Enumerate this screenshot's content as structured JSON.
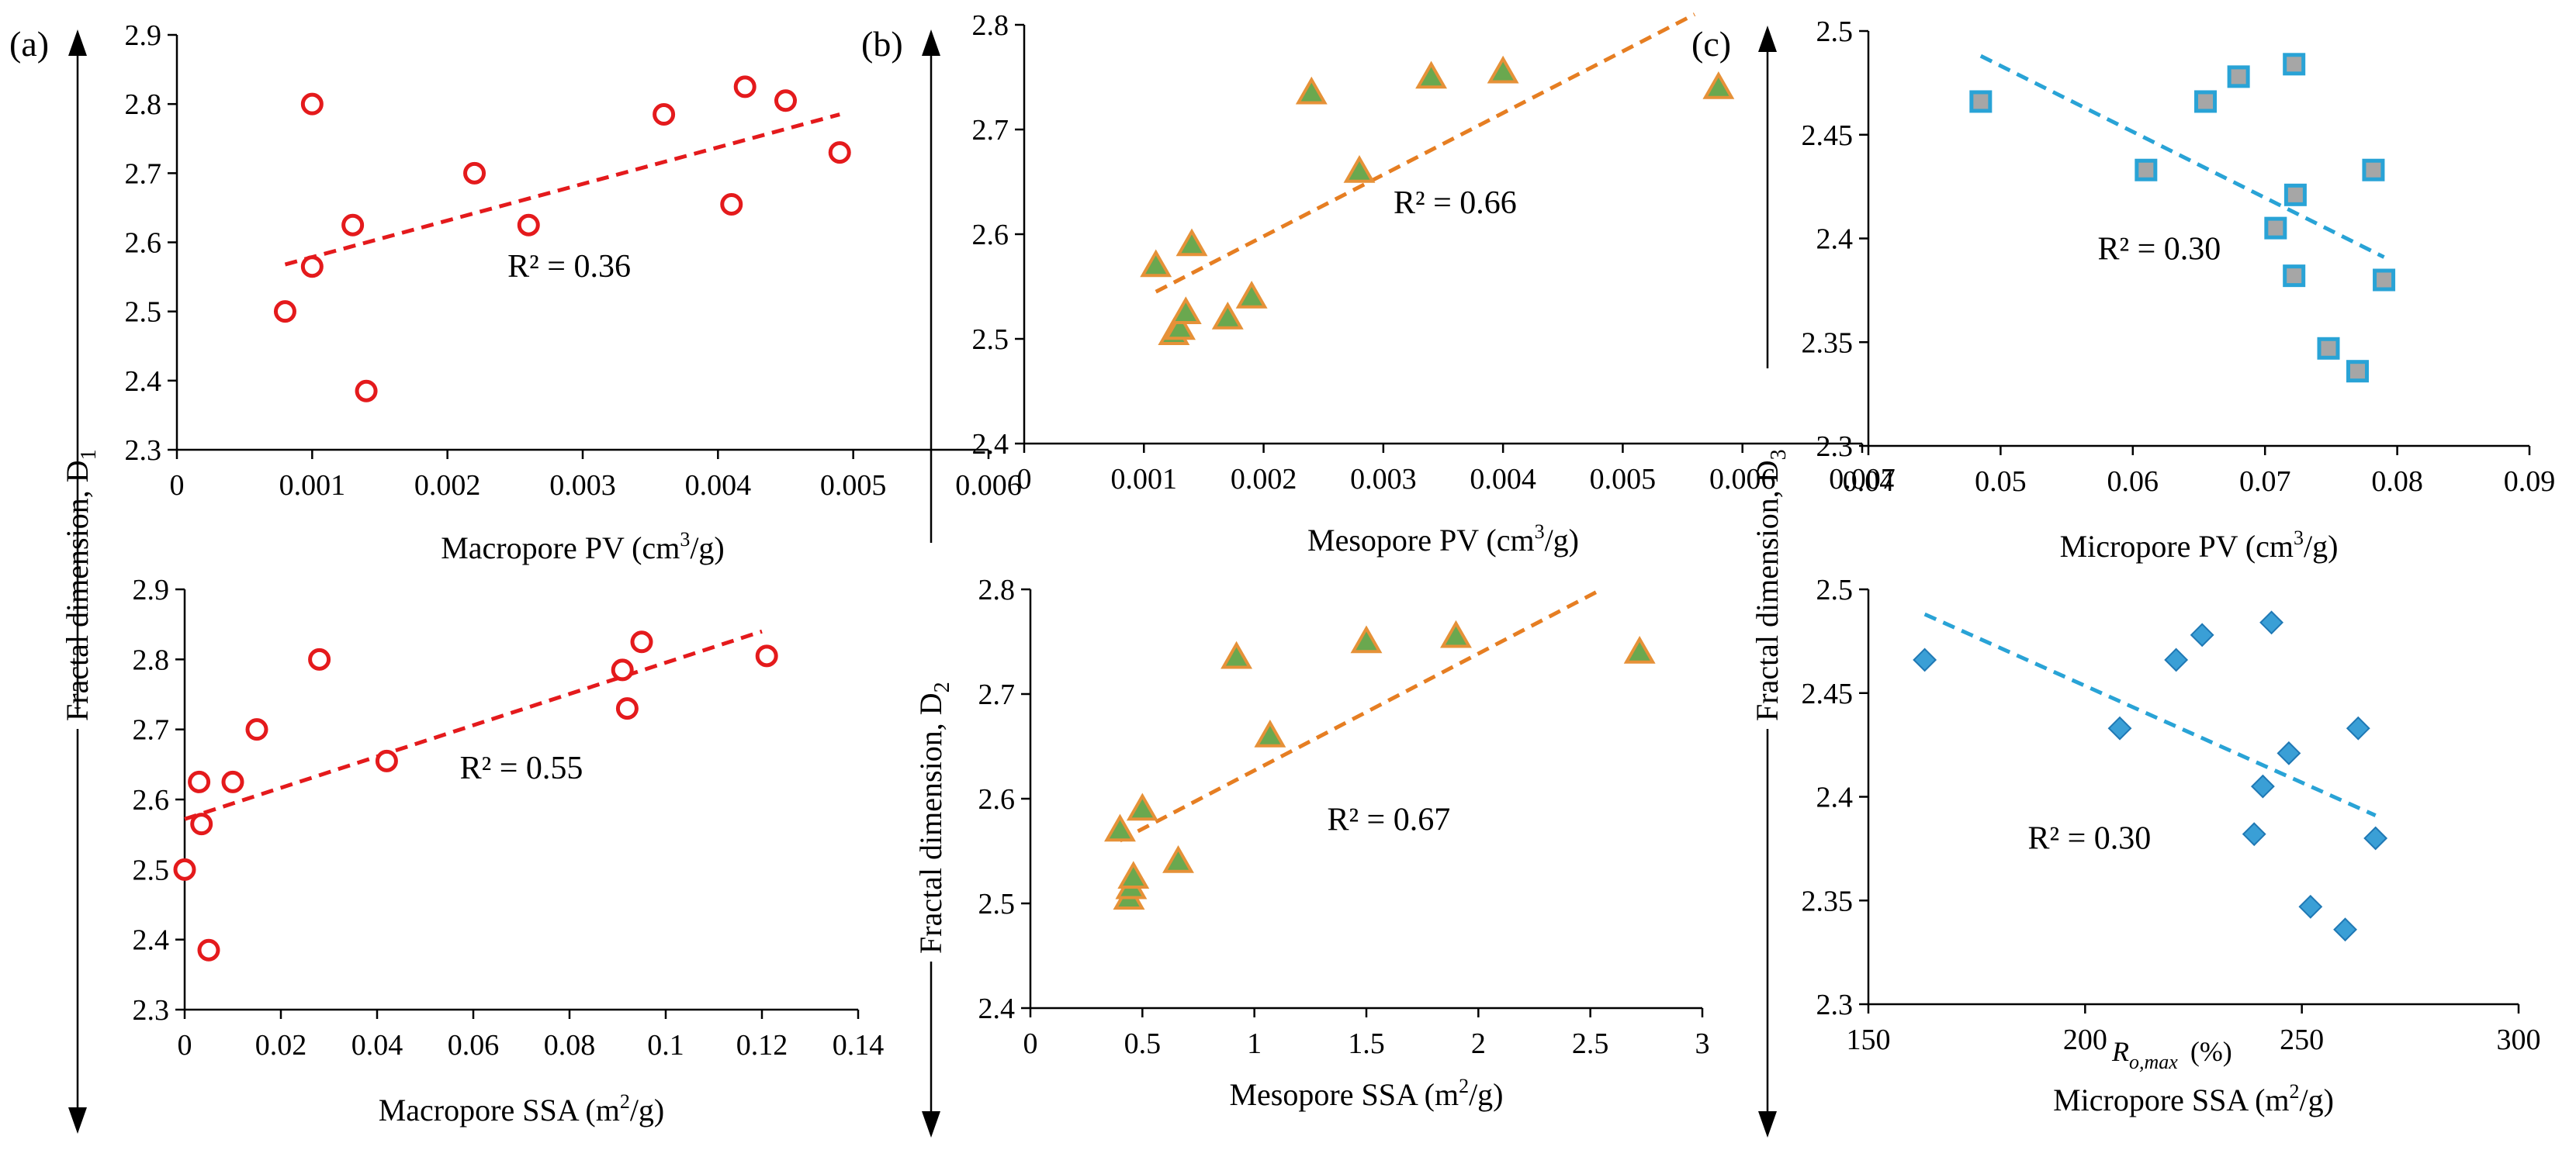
{
  "panel_labels": [
    "(a)",
    "(b)",
    "(c)"
  ],
  "axis_titles": {
    "left": "Fractal dimension, D",
    "left_sub": "1",
    "middle": "Fractal dimension, D",
    "middle_sub": "2",
    "right": "Fractal dimension, D",
    "right_sub": "3"
  },
  "stray_label": {
    "main": "R",
    "sub": "o,max",
    "tail": "(%)"
  },
  "chart_data": [
    {
      "id": "a-top",
      "type": "scatter",
      "xlabel": "Macropore PV (cm",
      "xlabel_sup": "3",
      "xlabel_tail": "/g)",
      "xlim": [
        0,
        0.006
      ],
      "ylim": [
        2.3,
        2.9
      ],
      "xticks": [
        "0",
        "0.001",
        "0.002",
        "0.003",
        "0.004",
        "0.005",
        "0.006"
      ],
      "yticks": [
        "2.3",
        "2.4",
        "2.5",
        "2.6",
        "2.7",
        "2.8",
        "2.9"
      ],
      "marker": "circle",
      "color": "#e41a1c",
      "x": [
        0.0008,
        0.001,
        0.001,
        0.0013,
        0.0014,
        0.0022,
        0.0026,
        0.0036,
        0.0041,
        0.0042,
        0.0045,
        0.0049
      ],
      "y": [
        2.5,
        2.565,
        2.8,
        2.625,
        2.385,
        2.7,
        2.625,
        2.785,
        2.655,
        2.825,
        2.805,
        2.73
      ],
      "trend": {
        "x": [
          0.0008,
          0.0049
        ],
        "y": [
          2.568,
          2.785
        ]
      },
      "r2": "R² = 0.36",
      "r2_pos": [
        0.0029,
        2.55
      ]
    },
    {
      "id": "a-bottom",
      "type": "scatter",
      "xlabel": "Macropore SSA (m",
      "xlabel_sup": "2",
      "xlabel_tail": "/g)",
      "xlim": [
        0,
        0.14
      ],
      "ylim": [
        2.3,
        2.9
      ],
      "xticks": [
        "0",
        "0.02",
        "0.04",
        "0.06",
        "0.08",
        "0.1",
        "0.12",
        "0.14"
      ],
      "yticks": [
        "2.3",
        "2.4",
        "2.5",
        "2.6",
        "2.7",
        "2.8",
        "2.9"
      ],
      "marker": "circle",
      "color": "#e41a1c",
      "x": [
        0,
        0.003,
        0.0035,
        0.005,
        0.01,
        0.015,
        0.028,
        0.042,
        0.091,
        0.092,
        0.095,
        0.121
      ],
      "y": [
        2.5,
        2.625,
        2.565,
        2.385,
        2.625,
        2.7,
        2.8,
        2.655,
        2.785,
        2.73,
        2.825,
        2.805
      ],
      "trend": {
        "x": [
          0,
          0.12
        ],
        "y": [
          2.572,
          2.84
        ]
      },
      "r2": "R² = 0.55",
      "r2_pos": [
        0.07,
        2.63
      ]
    },
    {
      "id": "b-top",
      "type": "scatter",
      "xlabel": "Mesopore PV (cm",
      "xlabel_sup": "3",
      "xlabel_tail": "/g)",
      "xlim": [
        0,
        0.007
      ],
      "ylim": [
        2.4,
        2.8
      ],
      "xticks": [
        "0",
        "0.001",
        "0.002",
        "0.003",
        "0.004",
        "0.005",
        "0.006",
        "0.007"
      ],
      "yticks": [
        "2.4",
        "2.5",
        "2.6",
        "2.7",
        "2.8"
      ],
      "marker": "triangle",
      "color": "#6aa84f",
      "stroke": "#e69138",
      "x": [
        0.0011,
        0.00125,
        0.0013,
        0.00135,
        0.0014,
        0.0017,
        0.0019,
        0.0024,
        0.0028,
        0.0034,
        0.004,
        0.0058
      ],
      "y": [
        2.57,
        2.505,
        2.51,
        2.525,
        2.59,
        2.52,
        2.54,
        2.735,
        2.66,
        2.75,
        2.755,
        2.74
      ],
      "trend": {
        "x": [
          0.0011,
          0.0056
        ],
        "y": [
          2.545,
          2.81
        ]
      },
      "r2": "R² = 0.66",
      "r2_pos": [
        0.0036,
        2.62
      ]
    },
    {
      "id": "b-bottom",
      "type": "scatter",
      "xlabel": "Mesopore SSA (m",
      "xlabel_sup": "2",
      "xlabel_tail": "/g)",
      "xlim": [
        0,
        3
      ],
      "ylim": [
        2.4,
        2.8
      ],
      "xticks": [
        "0",
        "0.5",
        "1",
        "1.5",
        "2",
        "2.5",
        "3"
      ],
      "yticks": [
        "2.4",
        "2.5",
        "2.6",
        "2.7",
        "2.8"
      ],
      "marker": "triangle",
      "color": "#6aa84f",
      "stroke": "#e69138",
      "x": [
        0.4,
        0.44,
        0.45,
        0.46,
        0.5,
        0.66,
        0.92,
        1.07,
        1.5,
        1.9,
        2.72
      ],
      "y": [
        2.57,
        2.505,
        2.515,
        2.525,
        2.59,
        2.54,
        2.735,
        2.66,
        2.75,
        2.755,
        2.74
      ],
      "trend": {
        "x": [
          0.4,
          2.55
        ],
        "y": [
          2.56,
          2.8
        ]
      },
      "r2": "R² = 0.67",
      "r2_pos": [
        1.6,
        2.57
      ]
    },
    {
      "id": "c-top",
      "type": "scatter",
      "xlabel": "Micropore PV (cm",
      "xlabel_sup": "3",
      "xlabel_tail": "/g)",
      "xlim": [
        0.04,
        0.09
      ],
      "ylim": [
        2.3,
        2.5
      ],
      "xticks": [
        "0.04",
        "0.05",
        "0.06",
        "0.07",
        "0.08",
        "0.09"
      ],
      "yticks": [
        "2.3",
        "2.35",
        "2.4",
        "2.45",
        "2.5"
      ],
      "marker": "square",
      "color": "#a6a6a6",
      "stroke": "#29a3d6",
      "x": [
        0.0485,
        0.061,
        0.0655,
        0.068,
        0.0708,
        0.0722,
        0.0722,
        0.0723,
        0.0748,
        0.077,
        0.0782,
        0.079
      ],
      "y": [
        2.466,
        2.433,
        2.466,
        2.478,
        2.405,
        2.484,
        2.382,
        2.421,
        2.347,
        2.336,
        2.433,
        2.38
      ],
      "trend": {
        "x": [
          0.0485,
          0.079
        ],
        "y": [
          2.488,
          2.391
        ]
      },
      "r2": "R² = 0.30",
      "r2_pos": [
        0.062,
        2.39
      ]
    },
    {
      "id": "c-bottom",
      "type": "scatter",
      "xlabel": "Micropore SSA (m",
      "xlabel_sup": "2",
      "xlabel_tail": "/g)",
      "xlim": [
        150,
        300
      ],
      "ylim": [
        2.3,
        2.5
      ],
      "xticks": [
        "150",
        "200",
        "250",
        "300"
      ],
      "yticks": [
        "2.3",
        "2.35",
        "2.4",
        "2.45",
        "2.5"
      ],
      "marker": "diamond",
      "color": "#3a9fd6",
      "x": [
        163,
        208,
        221,
        227,
        239,
        241,
        243,
        247,
        252,
        260,
        263,
        267
      ],
      "y": [
        2.466,
        2.433,
        2.466,
        2.478,
        2.382,
        2.405,
        2.484,
        2.421,
        2.347,
        2.336,
        2.433,
        2.38
      ],
      "trend": {
        "x": [
          163,
          267
        ],
        "y": [
          2.488,
          2.391
        ]
      },
      "r2": "R² = 0.30",
      "r2_pos": [
        201,
        2.375
      ]
    }
  ]
}
